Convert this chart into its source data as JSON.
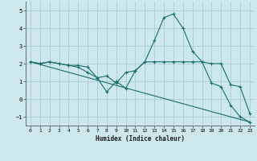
{
  "xlabel": "Humidex (Indice chaleur)",
  "background_color": "#cce8ec",
  "grid_color": "#aaccd4",
  "line_color": "#1a6e6a",
  "xlim": [
    -0.5,
    23.5
  ],
  "ylim": [
    -1.5,
    5.5
  ],
  "xticks": [
    0,
    1,
    2,
    3,
    4,
    5,
    6,
    7,
    8,
    9,
    10,
    11,
    12,
    13,
    14,
    15,
    16,
    17,
    18,
    19,
    20,
    21,
    22,
    23
  ],
  "yticks": [
    -1,
    0,
    1,
    2,
    3,
    4,
    5
  ],
  "series1_x": [
    0,
    1,
    2,
    3,
    4,
    5,
    6,
    7,
    8,
    9,
    10,
    11,
    12,
    13,
    14,
    15,
    16,
    17,
    18,
    19,
    20,
    21,
    22,
    23
  ],
  "series1_y": [
    2.1,
    2.0,
    2.1,
    2.0,
    1.9,
    1.9,
    1.8,
    1.2,
    1.3,
    0.9,
    1.5,
    1.6,
    2.1,
    3.3,
    4.6,
    4.8,
    4.0,
    2.7,
    2.1,
    2.0,
    2.0,
    0.8,
    0.7,
    -0.8
  ],
  "series2_x": [
    0,
    1,
    2,
    3,
    4,
    5,
    6,
    7,
    8,
    9,
    10,
    11,
    12,
    13,
    14,
    15,
    16,
    17,
    18,
    19,
    20,
    21,
    22,
    23
  ],
  "series2_y": [
    2.1,
    2.0,
    2.1,
    2.0,
    1.9,
    1.8,
    1.5,
    1.2,
    0.4,
    1.0,
    0.6,
    1.6,
    2.1,
    2.1,
    2.1,
    2.1,
    2.1,
    2.1,
    2.1,
    0.9,
    0.7,
    -0.35,
    -1.0,
    -1.3
  ],
  "series3_x": [
    0,
    23
  ],
  "series3_y": [
    2.1,
    -1.3
  ]
}
